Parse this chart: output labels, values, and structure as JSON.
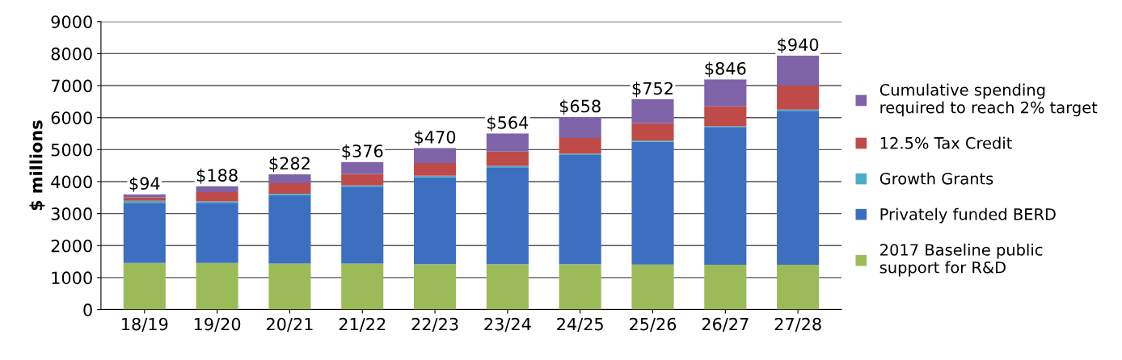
{
  "chart_data": {
    "type": "bar",
    "stacked": true,
    "ylabel": "$ millions",
    "categories": [
      "18/19",
      "19/20",
      "20/21",
      "21/22",
      "22/23",
      "23/24",
      "24/25",
      "25/26",
      "26/27",
      "27/28"
    ],
    "series": [
      {
        "name": "2017 Baseline public support for R&D",
        "color": "#9bbb59",
        "values": [
          1460,
          1460,
          1440,
          1440,
          1420,
          1420,
          1420,
          1410,
          1400,
          1400
        ]
      },
      {
        "name": "Privately funded BERD",
        "color": "#3c6fc0",
        "values": [
          1880,
          1880,
          2140,
          2400,
          2720,
          3030,
          3410,
          3830,
          4290,
          4810
        ]
      },
      {
        "name": "Growth Grants",
        "color": "#4bacc6",
        "values": [
          60,
          40,
          40,
          40,
          40,
          40,
          40,
          40,
          40,
          40
        ]
      },
      {
        "name": "12.5% Tax Credit",
        "color": "#be4b48",
        "values": [
          110,
          290,
          330,
          360,
          400,
          450,
          490,
          540,
          620,
          750
        ]
      },
      {
        "name": "Cumulative spending required to reach 2% target",
        "color": "#7f63a8",
        "values": [
          94,
          188,
          282,
          376,
          470,
          564,
          658,
          752,
          846,
          940
        ],
        "value_labels": [
          "$94",
          "$188",
          "$282",
          "$376",
          "$470",
          "$564",
          "$658",
          "$752",
          "$846",
          "$940"
        ]
      }
    ],
    "ylim": [
      0,
      9000
    ],
    "yticks": [
      0,
      1000,
      2000,
      3000,
      4000,
      5000,
      6000,
      7000,
      8000,
      9000
    ],
    "grid": "y",
    "legend": "right"
  }
}
